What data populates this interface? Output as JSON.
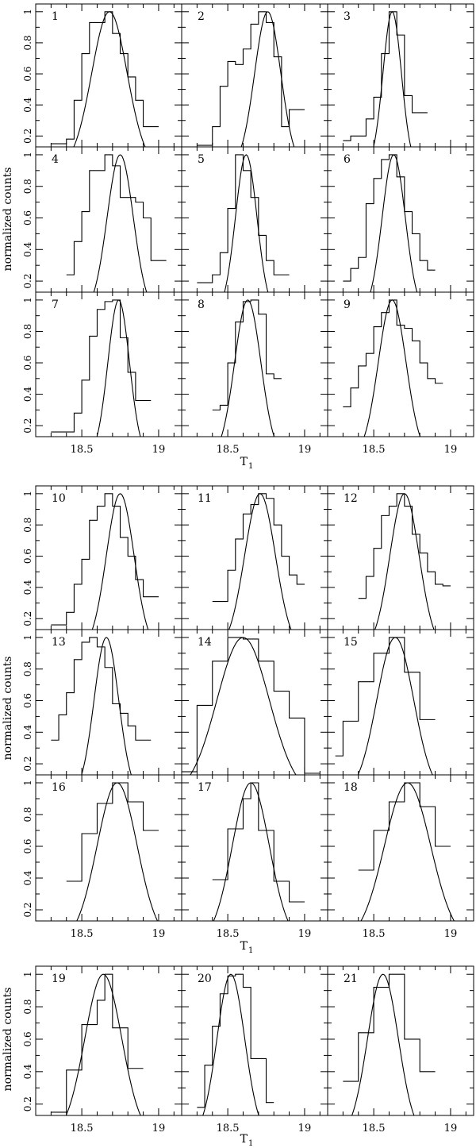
{
  "figure": {
    "ylabel": "normalized counts",
    "xlabel": "T",
    "xlabel_sub": "1",
    "xticklabels": [
      "18.5",
      "19"
    ],
    "yticklabels": [
      "0.2",
      "0.4",
      "0.6",
      "0.8",
      "1"
    ]
  },
  "chart_data": [
    {
      "type": "histogram+gaussian",
      "panel": "1",
      "xlim": [
        18.2,
        19.15
      ],
      "ylim": [
        0.13,
        1.05
      ],
      "bin_edges": [
        18.3,
        18.4,
        18.45,
        18.5,
        18.55,
        18.6,
        18.65,
        18.7,
        18.75,
        18.8,
        18.85,
        18.9,
        18.95,
        19.0
      ],
      "counts": [
        0.15,
        0.18,
        0.43,
        0.73,
        0.93,
        0.93,
        1.0,
        0.86,
        0.73,
        0.58,
        0.43,
        0.26,
        0.26
      ],
      "gauss": {
        "mu": 18.68,
        "sigma": 0.115
      }
    },
    {
      "type": "histogram+gaussian",
      "panel": "2",
      "xlim": [
        18.2,
        19.15
      ],
      "ylim": [
        0.13,
        1.05
      ],
      "bin_edges": [
        18.3,
        18.4,
        18.45,
        18.5,
        18.55,
        18.6,
        18.65,
        18.7,
        18.75,
        18.8,
        18.85,
        18.9,
        18.95,
        19.0
      ],
      "counts": [
        0.14,
        0.26,
        0.52,
        0.68,
        0.66,
        0.76,
        0.92,
        1.0,
        0.93,
        0.71,
        0.26,
        0.37,
        0.37
      ],
      "gauss": {
        "mu": 18.76,
        "sigma": 0.085
      }
    },
    {
      "type": "histogram+gaussian",
      "panel": "3",
      "xlim": [
        18.2,
        19.15
      ],
      "ylim": [
        0.13,
        1.05
      ],
      "bin_edges": [
        18.3,
        18.35,
        18.45,
        18.5,
        18.55,
        18.6,
        18.65,
        18.7,
        18.75,
        18.85
      ],
      "counts": [
        0.17,
        0.2,
        0.31,
        0.45,
        0.73,
        1.0,
        0.85,
        0.46,
        0.35
      ],
      "gauss": {
        "mu": 18.62,
        "sigma": 0.06
      }
    },
    {
      "type": "histogram+gaussian",
      "panel": "4",
      "xlim": [
        18.2,
        19.15
      ],
      "ylim": [
        0.13,
        1.05
      ],
      "bin_edges": [
        18.4,
        18.45,
        18.5,
        18.55,
        18.6,
        18.65,
        18.7,
        18.75,
        18.8,
        18.85,
        18.9,
        18.95,
        19.0,
        19.05
      ],
      "counts": [
        0.24,
        0.45,
        0.64,
        0.9,
        0.9,
        1.0,
        0.93,
        0.73,
        0.73,
        0.7,
        0.6,
        0.33,
        0.33
      ],
      "gauss": {
        "mu": 18.75,
        "sigma": 0.085
      }
    },
    {
      "type": "histogram+gaussian",
      "panel": "5",
      "xlim": [
        18.2,
        19.15
      ],
      "ylim": [
        0.13,
        1.05
      ],
      "bin_edges": [
        18.3,
        18.4,
        18.45,
        18.5,
        18.55,
        18.6,
        18.65,
        18.7,
        18.75,
        18.8,
        18.85,
        18.9
      ],
      "counts": [
        0.19,
        0.24,
        0.38,
        0.66,
        1.0,
        0.9,
        0.73,
        0.49,
        0.33,
        0.24,
        0.24
      ],
      "gauss": {
        "mu": 18.62,
        "sigma": 0.07
      }
    },
    {
      "type": "histogram+gaussian",
      "panel": "6",
      "xlim": [
        18.2,
        19.15
      ],
      "ylim": [
        0.13,
        1.05
      ],
      "bin_edges": [
        18.3,
        18.35,
        18.4,
        18.45,
        18.5,
        18.55,
        18.6,
        18.65,
        18.7,
        18.75,
        18.8,
        18.85,
        18.9
      ],
      "counts": [
        0.2,
        0.28,
        0.35,
        0.69,
        0.85,
        0.97,
        1.0,
        0.86,
        0.64,
        0.5,
        0.33,
        0.27
      ],
      "gauss": {
        "mu": 18.63,
        "sigma": 0.075
      }
    },
    {
      "type": "histogram+gaussian",
      "panel": "7",
      "xlim": [
        18.2,
        19.15
      ],
      "ylim": [
        0.13,
        1.05
      ],
      "bin_edges": [
        18.3,
        18.4,
        18.45,
        18.5,
        18.55,
        18.6,
        18.65,
        18.7,
        18.75,
        18.8,
        18.85,
        18.9,
        18.95
      ],
      "counts": [
        0.16,
        0.16,
        0.28,
        0.49,
        0.77,
        0.94,
        0.99,
        1.0,
        0.76,
        0.54,
        0.36,
        0.36
      ],
      "gauss": {
        "mu": 18.74,
        "sigma": 0.07
      }
    },
    {
      "type": "histogram+gaussian",
      "panel": "8",
      "xlim": [
        18.2,
        19.15
      ],
      "ylim": [
        0.13,
        1.05
      ],
      "bin_edges": [
        18.4,
        18.45,
        18.5,
        18.55,
        18.6,
        18.65,
        18.7,
        18.75,
        18.8,
        18.85
      ],
      "counts": [
        0.3,
        0.33,
        0.6,
        0.86,
        0.99,
        1.0,
        0.91,
        0.53,
        0.5
      ],
      "gauss": {
        "mu": 18.63,
        "sigma": 0.085
      }
    },
    {
      "type": "histogram+gaussian",
      "panel": "9",
      "xlim": [
        18.2,
        19.15
      ],
      "ylim": [
        0.13,
        1.05
      ],
      "bin_edges": [
        18.3,
        18.35,
        18.4,
        18.45,
        18.5,
        18.55,
        18.6,
        18.65,
        18.7,
        18.75,
        18.8,
        18.85,
        18.9,
        18.95
      ],
      "counts": [
        0.32,
        0.44,
        0.58,
        0.66,
        0.83,
        0.92,
        1.0,
        0.84,
        0.82,
        0.74,
        0.6,
        0.5,
        0.47
      ],
      "gauss": {
        "mu": 18.62,
        "sigma": 0.09
      }
    },
    {
      "type": "histogram+gaussian",
      "panel": "10",
      "xlim": [
        18.2,
        19.15
      ],
      "ylim": [
        0.13,
        1.05
      ],
      "bin_edges": [
        18.3,
        18.4,
        18.45,
        18.5,
        18.55,
        18.6,
        18.65,
        18.7,
        18.75,
        18.8,
        18.85,
        18.9,
        18.95,
        19.0
      ],
      "counts": [
        0.16,
        0.24,
        0.42,
        0.58,
        0.83,
        0.92,
        1.0,
        0.92,
        0.72,
        0.6,
        0.45,
        0.34,
        0.34
      ],
      "gauss": {
        "mu": 18.75,
        "sigma": 0.09
      }
    },
    {
      "type": "histogram+gaussian",
      "panel": "11",
      "xlim": [
        18.2,
        19.15
      ],
      "ylim": [
        0.13,
        1.05
      ],
      "bin_edges": [
        18.4,
        18.5,
        18.55,
        18.6,
        18.65,
        18.7,
        18.75,
        18.8,
        18.85,
        18.9,
        18.95,
        19.0
      ],
      "counts": [
        0.31,
        0.51,
        0.71,
        0.87,
        0.93,
        1.0,
        0.97,
        0.8,
        0.6,
        0.48,
        0.42
      ],
      "gauss": {
        "mu": 18.71,
        "sigma": 0.1
      }
    },
    {
      "type": "histogram+gaussian",
      "panel": "12",
      "xlim": [
        18.2,
        19.15
      ],
      "ylim": [
        0.13,
        1.05
      ],
      "bin_edges": [
        18.4,
        18.45,
        18.5,
        18.55,
        18.6,
        18.65,
        18.7,
        18.75,
        18.8,
        18.85,
        18.9,
        18.95,
        19.0
      ],
      "counts": [
        0.33,
        0.47,
        0.65,
        0.86,
        0.92,
        1.0,
        0.92,
        0.74,
        0.62,
        0.5,
        0.42,
        0.41
      ],
      "gauss": {
        "mu": 18.7,
        "sigma": 0.095
      }
    },
    {
      "type": "histogram+gaussian",
      "panel": "13",
      "xlim": [
        18.2,
        19.15
      ],
      "ylim": [
        0.13,
        1.05
      ],
      "bin_edges": [
        18.3,
        18.35,
        18.4,
        18.45,
        18.5,
        18.55,
        18.6,
        18.65,
        18.7,
        18.75,
        18.8,
        18.85,
        18.9,
        18.95
      ],
      "counts": [
        0.35,
        0.51,
        0.65,
        0.86,
        0.97,
        1.0,
        0.94,
        0.81,
        0.58,
        0.52,
        0.44,
        0.35,
        0.35
      ],
      "gauss": {
        "mu": 18.66,
        "sigma": 0.08
      }
    },
    {
      "type": "histogram+gaussian",
      "panel": "14",
      "xlim": [
        18.2,
        19.15
      ],
      "ylim": [
        0.13,
        1.05
      ],
      "bin_edges": [
        18.2,
        18.3,
        18.4,
        18.5,
        18.6,
        18.7,
        18.8,
        18.9,
        19.0,
        19.1
      ],
      "counts": [
        0.15,
        0.57,
        0.85,
        1.0,
        0.99,
        0.85,
        0.66,
        0.49,
        0.14
      ],
      "gauss": {
        "mu": 18.6,
        "sigma": 0.17
      }
    },
    {
      "type": "histogram+gaussian",
      "panel": "15",
      "xlim": [
        18.2,
        19.15
      ],
      "ylim": [
        0.13,
        1.05
      ],
      "bin_edges": [
        18.25,
        18.3,
        18.4,
        18.5,
        18.6,
        18.7,
        18.8,
        18.9
      ],
      "counts": [
        0.25,
        0.47,
        0.72,
        0.9,
        1.0,
        0.78,
        0.48
      ],
      "gauss": {
        "mu": 18.64,
        "sigma": 0.12
      }
    },
    {
      "type": "histogram+gaussian",
      "panel": "16",
      "xlim": [
        18.2,
        19.15
      ],
      "ylim": [
        0.13,
        1.05
      ],
      "bin_edges": [
        18.4,
        18.5,
        18.6,
        18.7,
        18.8,
        18.9,
        19.0
      ],
      "counts": [
        0.38,
        0.68,
        0.87,
        1.0,
        0.88,
        0.7
      ],
      "gauss": {
        "mu": 18.73,
        "sigma": 0.13
      }
    },
    {
      "type": "histogram+gaussian",
      "panel": "17",
      "xlim": [
        18.2,
        19.15
      ],
      "ylim": [
        0.13,
        1.05
      ],
      "bin_edges": [
        18.4,
        18.5,
        18.6,
        18.65,
        18.7,
        18.8,
        18.9,
        19.0
      ],
      "counts": [
        0.39,
        0.71,
        0.9,
        1.0,
        0.7,
        0.38,
        0.25
      ],
      "gauss": {
        "mu": 18.65,
        "sigma": 0.12
      }
    },
    {
      "type": "histogram+gaussian",
      "panel": "18",
      "xlim": [
        18.2,
        19.15
      ],
      "ylim": [
        0.13,
        1.05
      ],
      "bin_edges": [
        18.4,
        18.5,
        18.6,
        18.7,
        18.8,
        18.9,
        19.0
      ],
      "counts": [
        0.45,
        0.7,
        0.88,
        1.0,
        0.85,
        0.6
      ],
      "gauss": {
        "mu": 18.72,
        "sigma": 0.15
      }
    },
    {
      "type": "histogram+gaussian",
      "panel": "19",
      "xlim": [
        18.2,
        19.15
      ],
      "ylim": [
        0.13,
        1.05
      ],
      "bin_edges": [
        18.3,
        18.4,
        18.5,
        18.6,
        18.65,
        18.7,
        18.8,
        18.9
      ],
      "counts": [
        0.15,
        0.41,
        0.69,
        0.84,
        1.0,
        0.67,
        0.42
      ],
      "gauss": {
        "mu": 18.64,
        "sigma": 0.12
      }
    },
    {
      "type": "histogram+gaussian",
      "panel": "20",
      "xlim": [
        18.2,
        19.15
      ],
      "ylim": [
        0.13,
        1.05
      ],
      "bin_edges": [
        18.3,
        18.35,
        18.4,
        18.45,
        18.5,
        18.55,
        18.6,
        18.65,
        18.7,
        18.75,
        18.8
      ],
      "counts": [
        0.18,
        0.44,
        0.68,
        0.88,
        0.99,
        1.0,
        0.92,
        0.48,
        0.48,
        0.21
      ],
      "gauss": {
        "mu": 18.52,
        "sigma": 0.09
      }
    },
    {
      "type": "histogram+gaussian",
      "panel": "21",
      "xlim": [
        18.2,
        19.15
      ],
      "ylim": [
        0.13,
        1.05
      ],
      "bin_edges": [
        18.3,
        18.4,
        18.5,
        18.6,
        18.7,
        18.8,
        18.9
      ],
      "counts": [
        0.34,
        0.64,
        0.92,
        1.0,
        0.6,
        0.4
      ],
      "gauss": {
        "mu": 18.56,
        "sigma": 0.1
      }
    }
  ]
}
